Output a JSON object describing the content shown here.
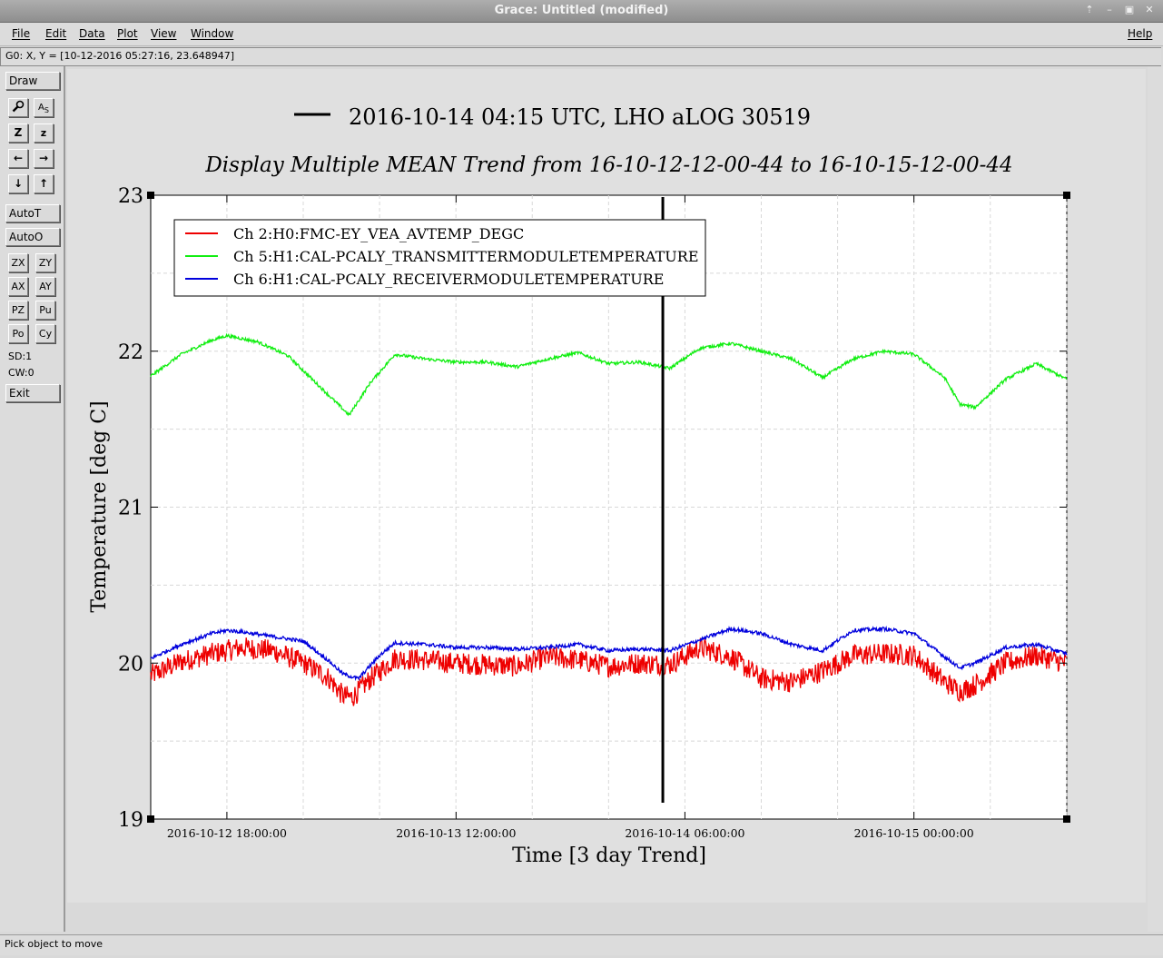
{
  "window": {
    "title": "Grace: Untitled (modified)",
    "controls": [
      "restore-icon",
      "minimize-icon",
      "maximize-icon",
      "close-icon"
    ]
  },
  "menu": {
    "items": [
      "File",
      "Edit",
      "Data",
      "Plot",
      "View",
      "Window"
    ],
    "help": "Help"
  },
  "locator": "G0: X, Y = [10-12-2016 05:27:16, 23.648947]",
  "toolbar": {
    "draw": "Draw",
    "autoT": "AutoT",
    "autoO": "AutoO",
    "grid_buttons": [
      "ZX",
      "ZY",
      "AX",
      "AY",
      "PZ",
      "Pu",
      "Po",
      "Cy"
    ],
    "sd": "SD:1",
    "cw": "CW:0",
    "exit": "Exit"
  },
  "status": "Pick object to move",
  "chart_data": {
    "type": "line",
    "title": "Display Multiple MEAN Trend from 16-10-12-12-00-44 to 16-10-15-12-00-44",
    "annotation": "2016-10-14 04:15 UTC, LHO aLOG 30519",
    "annotation_x": 1.6771,
    "xlabel": "Time [3 day Trend]",
    "ylabel": "Temperature [deg C]",
    "x_unit": "days since 2016-10-12 12:00:44",
    "xlim": [
      0,
      3
    ],
    "ylim": [
      19,
      23
    ],
    "yticks": [
      "19",
      "20",
      "21",
      "22",
      "23"
    ],
    "ytick_values": [
      19,
      20,
      21,
      22,
      23
    ],
    "xticks": [
      "2016-10-12 18:00:00",
      "2016-10-13 12:00:00",
      "2016-10-14 06:00:00",
      "2016-10-15 00:00:00"
    ],
    "xtick_values": [
      0.2495,
      1.0,
      1.7495,
      2.4995
    ],
    "grid": true,
    "legend_position": "top-left",
    "series": [
      {
        "name": "Ch 2:H0:FMC-EY_VEA_AVTEMP_DEGC",
        "color": "#ee0000",
        "x": [
          0,
          0.1,
          0.2,
          0.3,
          0.4,
          0.5,
          0.58,
          0.63,
          0.66,
          0.72,
          0.8,
          0.9,
          1.0,
          1.1,
          1.2,
          1.3,
          1.4,
          1.5,
          1.6,
          1.7,
          1.8,
          1.9,
          2.0,
          2.1,
          2.2,
          2.3,
          2.4,
          2.5,
          2.6,
          2.65,
          2.7,
          2.8,
          2.9,
          3.0
        ],
        "y": [
          19.92,
          20.01,
          20.06,
          20.1,
          20.08,
          20.0,
          19.91,
          19.79,
          19.78,
          19.9,
          20.03,
          20.02,
          20.0,
          19.99,
          19.98,
          20.04,
          20.02,
          19.98,
          20.0,
          19.99,
          20.1,
          20.04,
          19.9,
          19.88,
          19.95,
          20.05,
          20.06,
          20.05,
          19.88,
          19.82,
          19.86,
          20.0,
          20.05,
          20.0
        ],
        "noise": 0.07
      },
      {
        "name": "Ch 5:H1:CAL-PCALY_TRANSMITTERMODULETEMPERATURE",
        "color": "#11ee11",
        "x": [
          0,
          0.1,
          0.2,
          0.25,
          0.35,
          0.45,
          0.55,
          0.65,
          0.72,
          0.8,
          0.9,
          1.0,
          1.1,
          1.2,
          1.3,
          1.4,
          1.5,
          1.6,
          1.7,
          1.8,
          1.9,
          2.0,
          2.1,
          2.2,
          2.3,
          2.4,
          2.5,
          2.6,
          2.65,
          2.7,
          2.8,
          2.9,
          3.0
        ],
        "y": [
          21.84,
          21.98,
          22.07,
          22.1,
          22.06,
          21.97,
          21.78,
          21.59,
          21.8,
          21.98,
          21.95,
          21.93,
          21.93,
          21.9,
          21.95,
          21.99,
          21.92,
          21.93,
          21.89,
          22.02,
          22.05,
          22.0,
          21.95,
          21.83,
          21.95,
          22.0,
          21.98,
          21.83,
          21.66,
          21.64,
          21.82,
          21.92,
          21.82
        ],
        "noise": 0.01
      },
      {
        "name": "Ch 6:H1:CAL-PCALY_RECEIVERMODULETEMPERATURE",
        "color": "#0000dd",
        "x": [
          0,
          0.1,
          0.2,
          0.25,
          0.3,
          0.4,
          0.5,
          0.58,
          0.63,
          0.68,
          0.75,
          0.8,
          0.9,
          1.0,
          1.1,
          1.2,
          1.3,
          1.4,
          1.5,
          1.6,
          1.7,
          1.8,
          1.9,
          2.0,
          2.1,
          2.2,
          2.3,
          2.4,
          2.5,
          2.6,
          2.65,
          2.7,
          2.8,
          2.9,
          3.0
        ],
        "y": [
          20.03,
          20.12,
          20.19,
          20.21,
          20.2,
          20.17,
          20.14,
          20.02,
          19.93,
          19.9,
          20.05,
          20.13,
          20.12,
          20.1,
          20.1,
          20.09,
          20.1,
          20.12,
          20.08,
          20.09,
          20.08,
          20.15,
          20.22,
          20.19,
          20.12,
          20.08,
          20.21,
          20.22,
          20.19,
          20.04,
          19.97,
          20.0,
          20.1,
          20.12,
          20.06
        ],
        "noise": 0.012
      }
    ]
  }
}
